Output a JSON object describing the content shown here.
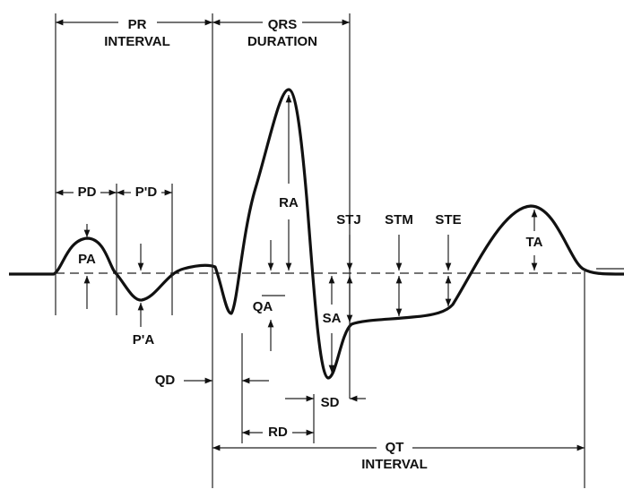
{
  "labels": {
    "pr": "PR",
    "pr_interval": "INTERVAL",
    "qrs": "QRS",
    "qrs_duration": "DURATION",
    "pd": "PD",
    "p_prime_d": "P'D",
    "ra": "RA",
    "stj": "STJ",
    "stm": "STM",
    "ste": "STE",
    "ta": "TA",
    "pa": "PA",
    "p_prime_a": "P'A",
    "qa": "QA",
    "sa": "SA",
    "qd": "QD",
    "rd": "RD",
    "sd": "SD",
    "qt": "QT",
    "qt_interval": "INTERVAL"
  }
}
